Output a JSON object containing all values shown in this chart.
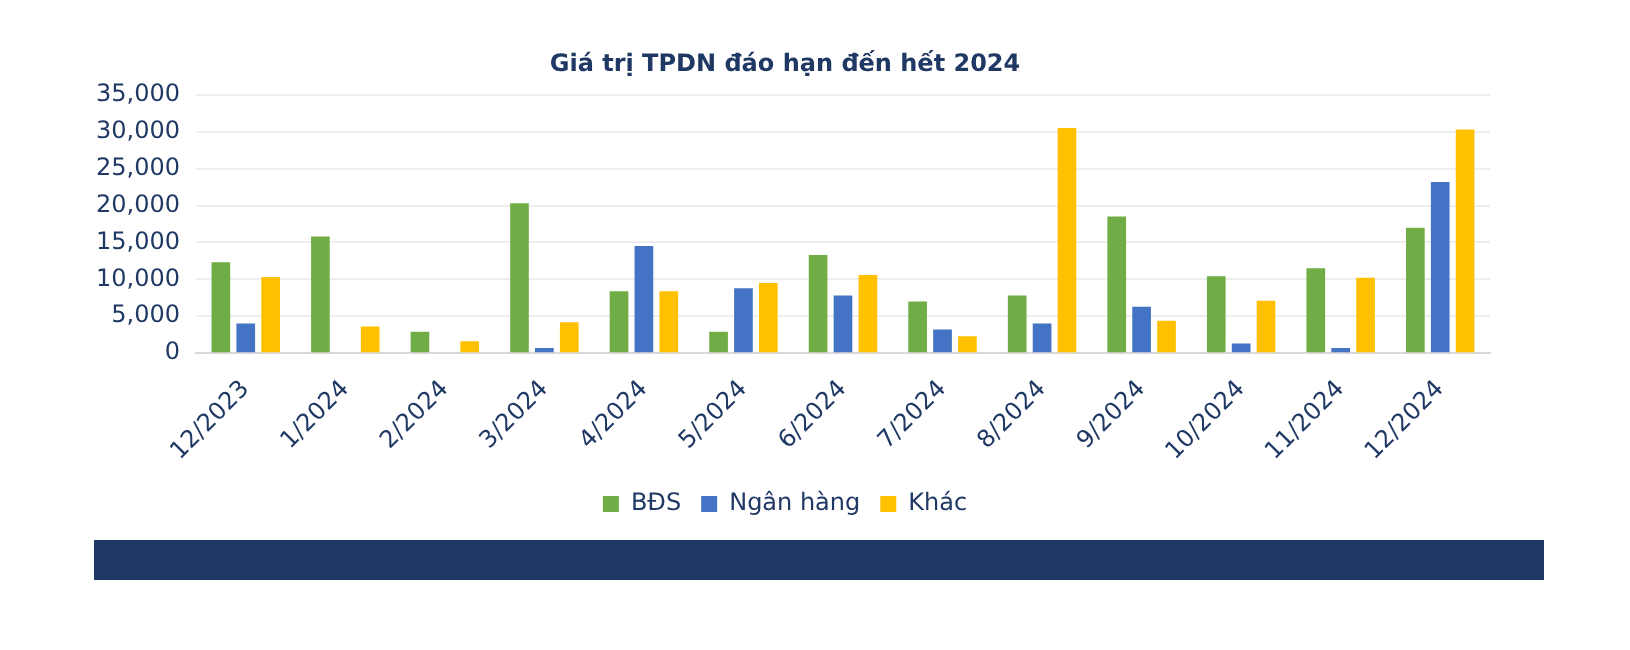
{
  "chart_data": {
    "type": "bar",
    "title": "Giá trị TPDN đáo hạn đến hết 2024",
    "categories": [
      "12/2023",
      "1/2024",
      "2/2024",
      "3/2024",
      "4/2024",
      "5/2024",
      "6/2024",
      "7/2024",
      "8/2024",
      "9/2024",
      "10/2024",
      "11/2024",
      "12/2024"
    ],
    "series": [
      {
        "name": "BĐS",
        "color": "#70ad47",
        "values": [
          12300,
          15800,
          2900,
          20300,
          8400,
          2900,
          13300,
          7000,
          7800,
          18500,
          10400,
          11500,
          17000
        ]
      },
      {
        "name": "Ngân hàng",
        "color": "#4472c4",
        "values": [
          4000,
          0,
          0,
          700,
          14500,
          8800,
          7800,
          3200,
          4000,
          6300,
          1300,
          700,
          23200
        ]
      },
      {
        "name": "Khác",
        "color": "#ffc000",
        "values": [
          10300,
          3600,
          1600,
          4200,
          8400,
          9500,
          10600,
          2300,
          30500,
          4400,
          7100,
          10200,
          30300
        ]
      }
    ],
    "ylim": [
      0,
      35000
    ],
    "yticks": [
      0,
      {
        "value": 5000,
        "label": "5,000"
      },
      {
        "value": 10000,
        "label": "10,000"
      },
      {
        "value": 15000,
        "label": "15,000"
      },
      {
        "value": 20000,
        "label": "20,000"
      },
      {
        "value": 25000,
        "label": "25,000"
      },
      {
        "value": 30000,
        "label": "30,000"
      },
      {
        "value": 35000,
        "label": "35,000"
      }
    ],
    "grid": "y",
    "legend": "bottom"
  }
}
